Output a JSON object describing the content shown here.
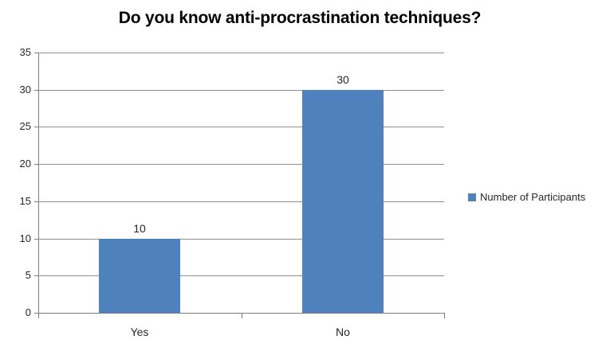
{
  "chart_data": {
    "type": "bar",
    "title": "Do you know anti-procrastination techniques?",
    "categories": [
      "Yes",
      "No"
    ],
    "series": [
      {
        "name": "Number of Participants",
        "color": "#4F81BD",
        "values": [
          10,
          30
        ]
      }
    ],
    "data_labels": [
      "10",
      "30"
    ],
    "xlabel": "",
    "ylabel": "",
    "ylim": [
      0,
      35
    ],
    "ytick_step": 5,
    "yticks": [
      0,
      5,
      10,
      15,
      20,
      25,
      30,
      35
    ],
    "grid": true,
    "legend_position": "right",
    "colors": {
      "bar": "#4F81BD",
      "gridline": "#8F8F8F",
      "axis": "#7D7D7D",
      "tick_label": "#262626",
      "title": "#000000",
      "background": "#FFFFFF"
    }
  }
}
